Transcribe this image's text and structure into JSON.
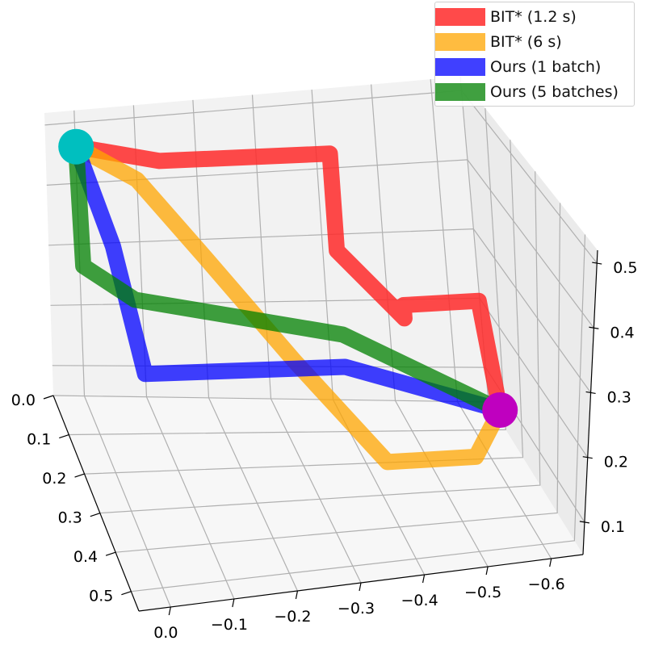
{
  "chart_data": {
    "type": "line",
    "projection": "3d",
    "axes": {
      "x": {
        "ticks": [
          0.0,
          -0.1,
          -0.2,
          -0.3,
          -0.4,
          -0.5,
          -0.6
        ],
        "tick_labels": [
          "0.0",
          "−0.1",
          "−0.2",
          "−0.3",
          "−0.4",
          "−0.5",
          "−0.6"
        ],
        "range": [
          -0.65,
          0.05
        ]
      },
      "y": {
        "ticks": [
          0.0,
          0.1,
          0.2,
          0.3,
          0.4,
          0.5
        ],
        "tick_labels": [
          "0.0",
          "0.1",
          "0.2",
          "0.3",
          "0.4",
          "0.5"
        ],
        "range": [
          0.0,
          0.55
        ]
      },
      "z": {
        "ticks": [
          0.1,
          0.2,
          0.3,
          0.4,
          0.5
        ],
        "tick_labels": [
          "0.1",
          "0.2",
          "0.3",
          "0.4",
          "0.5"
        ],
        "range": [
          0.05,
          0.52
        ]
      }
    },
    "grid": true,
    "legend_position": "top-right",
    "series": [
      {
        "name": "BIT* (1.2 s)",
        "color": "#ff2a2a",
        "opacity": 0.85,
        "points": [
          [
            -0.63,
            0.15,
            0.1
          ],
          [
            -0.62,
            0.1,
            0.24
          ],
          [
            -0.5,
            0.1,
            0.24
          ],
          [
            -0.5,
            0.1,
            0.22
          ],
          [
            -0.4,
            0.1,
            0.33
          ],
          [
            -0.4,
            0.1,
            0.48
          ],
          [
            -0.13,
            0.1,
            0.5
          ],
          [
            0.0,
            0.05,
            0.5
          ]
        ]
      },
      {
        "name": "BIT* (6 s)",
        "color": "#ffa500",
        "opacity": 0.75,
        "points": [
          [
            -0.63,
            0.15,
            0.1
          ],
          [
            -0.55,
            0.3,
            0.1
          ],
          [
            -0.4,
            0.35,
            0.13
          ],
          [
            -0.3,
            0.2,
            0.22
          ],
          [
            -0.2,
            0.05,
            0.3
          ],
          [
            -0.1,
            0.0,
            0.4
          ],
          [
            0.0,
            0.05,
            0.5
          ]
        ]
      },
      {
        "name": "Ours (1 batch)",
        "color": "#0000ff",
        "opacity": 0.75,
        "points": [
          [
            -0.63,
            0.15,
            0.1
          ],
          [
            -0.4,
            0.1,
            0.15
          ],
          [
            -0.08,
            0.1,
            0.15
          ],
          [
            -0.05,
            0.05,
            0.33
          ],
          [
            0.0,
            0.05,
            0.5
          ]
        ]
      },
      {
        "name": "Ours (5 batches)",
        "color": "#008000",
        "opacity": 0.75,
        "points": [
          [
            -0.63,
            0.15,
            0.1
          ],
          [
            -0.4,
            0.1,
            0.2
          ],
          [
            -0.08,
            0.05,
            0.24
          ],
          [
            0.0,
            0.05,
            0.3
          ],
          [
            0.0,
            0.05,
            0.5
          ]
        ]
      }
    ],
    "markers": [
      {
        "name": "start",
        "color": "#bf00bf",
        "point": [
          -0.63,
          0.15,
          0.1
        ]
      },
      {
        "name": "goal",
        "color": "#00bfbf",
        "point": [
          0.0,
          0.05,
          0.5
        ]
      }
    ]
  }
}
